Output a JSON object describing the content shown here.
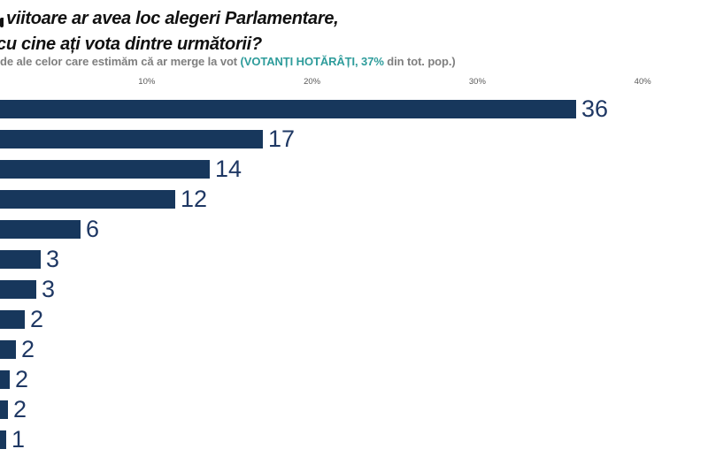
{
  "header": {
    "title_line1": "viitoare ar avea loc alegeri Parlamentare,",
    "title_line2": "cu cine ați vota dintre următorii?",
    "subtitle_prefix": "de ale celor care estimăm că ar merge la vot ",
    "subtitle_highlight": "(VOTANȚI HOTĂRÂȚI, 37%",
    "subtitle_suffix": " din tot. pop.)"
  },
  "colors": {
    "bar": "#17375c",
    "value_label": "#1f3864",
    "highlight_teal": "#2e9c9b",
    "subtitle_gray": "#7f7f7f",
    "tick_gray": "#595959",
    "title_black": "#111111"
  },
  "chart_data": {
    "type": "bar",
    "orientation": "horizontal",
    "title": "viitoare ar avea loc alegeri Parlamentare, cu cine ați vota dintre următorii?",
    "subtitle": "de ale celor care estimăm că ar merge la vot (VOTANȚI HOTĂRÂȚI, 37% din tot. pop.)",
    "value_labels": [
      "36",
      "17",
      "14",
      "12",
      "6",
      "3",
      "3",
      "2",
      "2",
      "2",
      "2",
      "1"
    ],
    "values_pct": [
      36,
      17,
      14,
      12,
      6,
      3,
      3,
      2,
      2,
      2,
      2,
      1
    ],
    "values_est_pct": [
      36.0,
      17.0,
      13.8,
      11.7,
      6.0,
      3.6,
      3.3,
      2.6,
      2.1,
      1.7,
      1.6,
      1.5
    ],
    "x_ticks": [
      "10%",
      "20%",
      "30%",
      "40%"
    ],
    "x_tick_values": [
      10,
      20,
      30,
      40
    ],
    "visible_x_range_pct": [
      1.1,
      43.9
    ],
    "categories_cropped_out_of_frame": true,
    "grid": false,
    "legend": false,
    "bar_color": "#17375c"
  }
}
